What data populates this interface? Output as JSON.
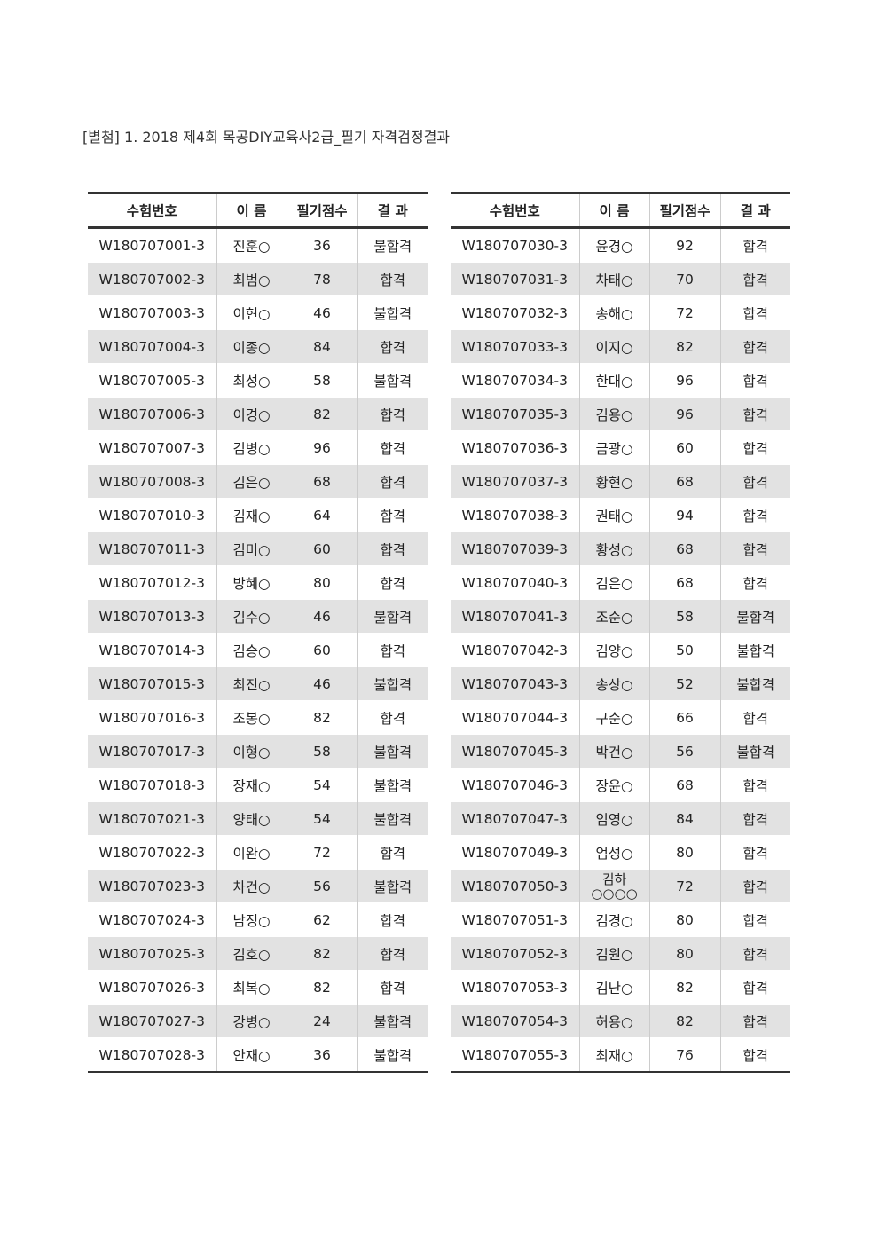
{
  "title": "[별첨] 1. 2018 제4회 목공DIY교육사2급_필기 자격검정결과",
  "headers": [
    "수험번호",
    "이 름",
    "필기점수",
    "결 과"
  ],
  "left_rows": [
    [
      "W180707001-3",
      "진훈○",
      "36",
      "불합격"
    ],
    [
      "W180707002-3",
      "최범○",
      "78",
      "합격"
    ],
    [
      "W180707003-3",
      "이현○",
      "46",
      "불합격"
    ],
    [
      "W180707004-3",
      "이종○",
      "84",
      "합격"
    ],
    [
      "W180707005-3",
      "최성○",
      "58",
      "불합격"
    ],
    [
      "W180707006-3",
      "이경○",
      "82",
      "합격"
    ],
    [
      "W180707007-3",
      "김병○",
      "96",
      "합격"
    ],
    [
      "W180707008-3",
      "김은○",
      "68",
      "합격"
    ],
    [
      "W180707010-3",
      "김재○",
      "64",
      "합격"
    ],
    [
      "W180707011-3",
      "김미○",
      "60",
      "합격"
    ],
    [
      "W180707012-3",
      "방혜○",
      "80",
      "합격"
    ],
    [
      "W180707013-3",
      "김수○",
      "46",
      "불합격"
    ],
    [
      "W180707014-3",
      "김승○",
      "60",
      "합격"
    ],
    [
      "W180707015-3",
      "최진○",
      "46",
      "불합격"
    ],
    [
      "W180707016-3",
      "조봉○",
      "82",
      "합격"
    ],
    [
      "W180707017-3",
      "이형○",
      "58",
      "불합격"
    ],
    [
      "W180707018-3",
      "장재○",
      "54",
      "불합격"
    ],
    [
      "W180707021-3",
      "양태○",
      "54",
      "불합격"
    ],
    [
      "W180707022-3",
      "이완○",
      "72",
      "합격"
    ],
    [
      "W180707023-3",
      "차건○",
      "56",
      "불합격"
    ],
    [
      "W180707024-3",
      "남정○",
      "62",
      "합격"
    ],
    [
      "W180707025-3",
      "김호○",
      "82",
      "합격"
    ],
    [
      "W180707026-3",
      "최복○",
      "82",
      "합격"
    ],
    [
      "W180707027-3",
      "강병○",
      "24",
      "불합격"
    ],
    [
      "W180707028-3",
      "안재○",
      "36",
      "불합격"
    ]
  ],
  "right_rows": [
    [
      "W180707030-3",
      "윤경○",
      "92",
      "합격"
    ],
    [
      "W180707031-3",
      "차태○",
      "70",
      "합격"
    ],
    [
      "W180707032-3",
      "송해○",
      "72",
      "합격"
    ],
    [
      "W180707033-3",
      "이지○",
      "82",
      "합격"
    ],
    [
      "W180707034-3",
      "한대○",
      "96",
      "합격"
    ],
    [
      "W180707035-3",
      "김용○",
      "96",
      "합격"
    ],
    [
      "W180707036-3",
      "금광○",
      "60",
      "합격"
    ],
    [
      "W180707037-3",
      "황현○",
      "68",
      "합격"
    ],
    [
      "W180707038-3",
      "권태○",
      "94",
      "합격"
    ],
    [
      "W180707039-3",
      "황성○",
      "68",
      "합격"
    ],
    [
      "W180707040-3",
      "김은○",
      "68",
      "합격"
    ],
    [
      "W180707041-3",
      "조순○",
      "58",
      "불합격"
    ],
    [
      "W180707042-3",
      "김양○",
      "50",
      "불합격"
    ],
    [
      "W180707043-3",
      "송상○",
      "52",
      "불합격"
    ],
    [
      "W180707044-3",
      "구순○",
      "66",
      "합격"
    ],
    [
      "W180707045-3",
      "박건○",
      "56",
      "불합격"
    ],
    [
      "W180707046-3",
      "장윤○",
      "68",
      "합격"
    ],
    [
      "W180707047-3",
      "임영○",
      "84",
      "합격"
    ],
    [
      "W180707049-3",
      "엄성○",
      "80",
      "합격"
    ],
    [
      "W180707050-3",
      "김하○○○○",
      "72",
      "합격"
    ],
    [
      "W180707051-3",
      "김경○",
      "80",
      "합격"
    ],
    [
      "W180707052-3",
      "김원○",
      "80",
      "합격"
    ],
    [
      "W180707053-3",
      "김난○",
      "82",
      "합격"
    ],
    [
      "W180707054-3",
      "허용○",
      "82",
      "합격"
    ],
    [
      "W180707055-3",
      "최재○",
      "76",
      "합격"
    ]
  ]
}
